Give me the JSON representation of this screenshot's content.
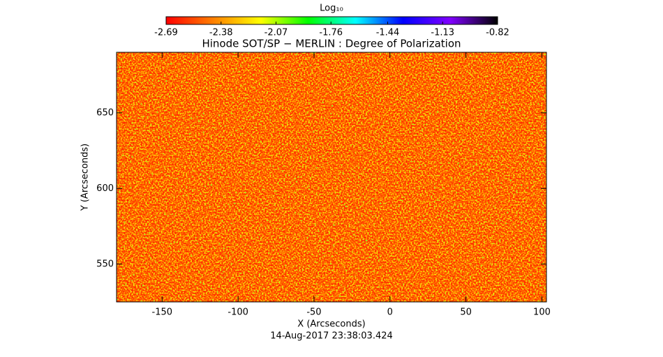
{
  "chart_data": {
    "type": "image",
    "title": "Hinode SOT/SP − MERLIN : Degree of Polarization",
    "x_label": "X (Arcseconds)",
    "y_label": "Y (Arcseconds)",
    "timestamp": "14-Aug-2017 23:38:03.424",
    "xlim": [
      -180,
      103
    ],
    "ylim": [
      525,
      690
    ],
    "xticks": [
      -150,
      -100,
      -50,
      0,
      50,
      100
    ],
    "yticks": [
      550,
      600,
      650
    ],
    "colorbar": {
      "label": "Log₁₀",
      "lim": [
        -2.69,
        -0.82
      ],
      "ticks": [
        -2.69,
        -2.38,
        -2.07,
        -1.76,
        -1.44,
        -1.13,
        -0.82
      ],
      "colors": [
        "#ff0000",
        "#ff8000",
        "#ffff00",
        "#00ff00",
        "#00ffff",
        "#0000ff",
        "#8000ff",
        "#000000"
      ]
    }
  }
}
